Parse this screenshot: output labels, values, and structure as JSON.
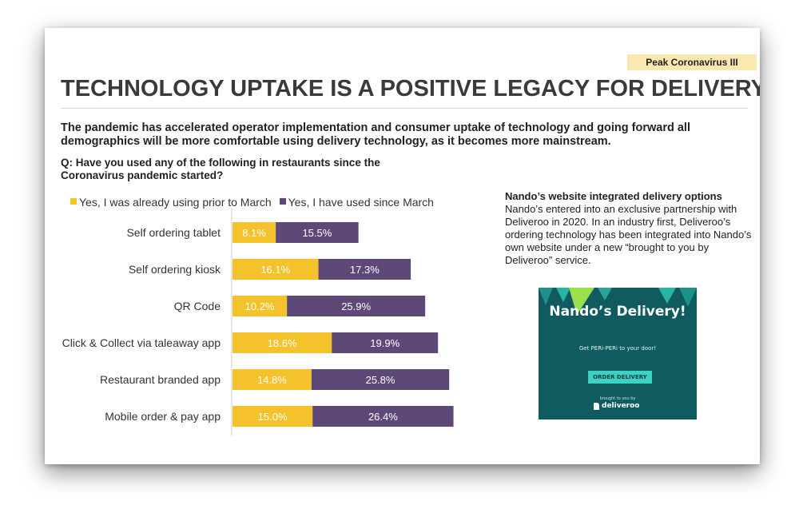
{
  "tag": "Peak Coronavirus III",
  "title": "TECHNOLOGY UPTAKE IS A POSITIVE LEGACY FOR DELIVERY",
  "intro": "The pandemic has accelerated operator implementation and consumer uptake of technology and going forward all demographics will be more comfortable using delivery technology, as it becomes more mainstream.",
  "question": "Q: Have you used any of the following in restaurants since the Coronavirus pandemic started?",
  "colors": {
    "prior": "#f4c22b",
    "since": "#5e4878",
    "ink": "#333333"
  },
  "chart_data": {
    "type": "bar",
    "orientation": "horizontal",
    "stacked": true,
    "categories": [
      "Self ordering tablet",
      "Self ordering kiosk",
      "QR Code",
      "Click & Collect via taleaway app",
      "Restaurant branded app",
      "Mobile order & pay app"
    ],
    "series": [
      {
        "name": "Yes, I was already using prior to March",
        "values": [
          8.1,
          16.1,
          10.2,
          18.6,
          14.8,
          15.0
        ],
        "labels": [
          "8.1%",
          "16.1%",
          "10.2%",
          "18.6%",
          "14.8%",
          "15.0%"
        ]
      },
      {
        "name": "Yes, I have used since March",
        "values": [
          15.5,
          17.3,
          25.9,
          19.9,
          25.8,
          26.4
        ],
        "labels": [
          "15.5%",
          "17.3%",
          "25.9%",
          "19.9%",
          "25.8%",
          "26.4%"
        ]
      }
    ],
    "legend": "top-left",
    "grid": false
  },
  "side": {
    "heading": "Nando’s website integrated delivery options",
    "body": "Nando’s entered into an exclusive partnership with Deliveroo in 2020.  In an industry first, Deliveroo’s ordering technology has been integrated into Nando’s own website under a new “brought to you by Deliveroo” service."
  },
  "promo": {
    "title": "Nando’s Delivery!",
    "subtitle": "Get PERi-PERi to your door!",
    "button": "ORDER DELIVERY",
    "brought": "brought to you by",
    "brand": "deliveroo"
  }
}
